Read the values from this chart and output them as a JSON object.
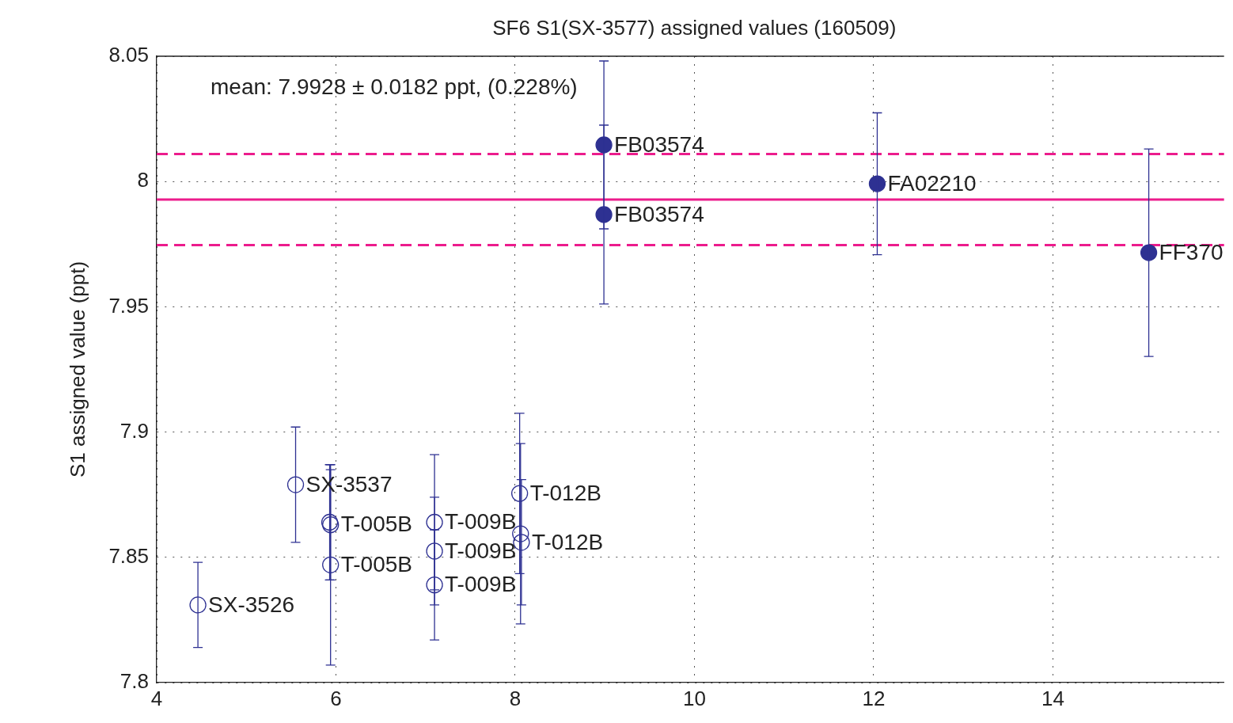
{
  "chart_data": {
    "type": "scatter",
    "title": "SF6 S1(SX-3577) assigned values (160509)",
    "ylabel": "S1 assigned value (ppt)",
    "series": [
      {
        "marker": "circle",
        "color": "#2e3192",
        "x": [
          4.46,
          5.55,
          5.93,
          5.94,
          5.94,
          7.1,
          7.1,
          7.1,
          8.05,
          8.06,
          8.07
        ],
        "values": [
          7.831,
          7.879,
          7.864,
          7.863,
          7.847,
          7.864,
          7.8525,
          7.839,
          7.8755,
          7.8594,
          7.856
        ],
        "errors": [
          0.017,
          0.023,
          0.023,
          0.022,
          0.04,
          0.027,
          0.0215,
          0.022,
          0.032,
          0.036,
          0.025
        ]
      },
      {
        "marker": "circle",
        "color": "#2e3192",
        "x": [
          8.99,
          8.99,
          12.04,
          15.07
        ],
        "values": [
          8.0146,
          7.9868,
          7.9991,
          7.9716
        ],
        "errors": [
          0.0335,
          0.0357,
          0.0283,
          0.0414
        ]
      }
    ],
    "annotations": [
      "mean: 7.9928 ± 0.0182 ppt, (0.228%)",
      {
        "text": "SX-3526",
        "x": 4.46,
        "y": 7.831
      },
      {
        "text": "SX-3537",
        "x": 5.55,
        "y": 7.879
      },
      {
        "text": "T-005B",
        "x": 5.94,
        "y": 7.863
      },
      {
        "text": "T-005B",
        "x": 5.94,
        "y": 7.847
      },
      {
        "text": "T-009B",
        "x": 7.1,
        "y": 7.864
      },
      {
        "text": "T-009B",
        "x": 7.1,
        "y": 7.8525
      },
      {
        "text": "T-009B",
        "x": 7.1,
        "y": 7.839
      },
      {
        "text": "T-012B",
        "x": 8.05,
        "y": 7.8755
      },
      {
        "text": "T-012B",
        "x": 8.07,
        "y": 7.856
      },
      {
        "text": "FB03574",
        "x": 8.99,
        "y": 8.0146
      },
      {
        "text": "FB03574",
        "x": 8.99,
        "y": 7.9868
      },
      {
        "text": "FA02210",
        "x": 12.04,
        "y": 7.9991
      },
      {
        "text": "FF370",
        "x": 15.07,
        "y": 7.9716
      }
    ],
    "ref_lines": [
      {
        "axis": "y",
        "value": 7.9928,
        "color": "#ec1c8c",
        "line_style": "solid"
      },
      {
        "axis": "y",
        "value": 8.011,
        "color": "#ec1c8c",
        "line_style": "dashed"
      },
      {
        "axis": "y",
        "value": 7.9746,
        "color": "#ec1c8c",
        "line_style": "dashed"
      }
    ],
    "xlim": [
      4,
      15.91
    ],
    "xticks": [
      4,
      6,
      8,
      10,
      12,
      14
    ],
    "ylim": [
      7.8,
      8.05
    ],
    "yticks": [
      7.8,
      7.85,
      7.9,
      7.95,
      8,
      8.05
    ],
    "grid": true,
    "legend": false
  }
}
